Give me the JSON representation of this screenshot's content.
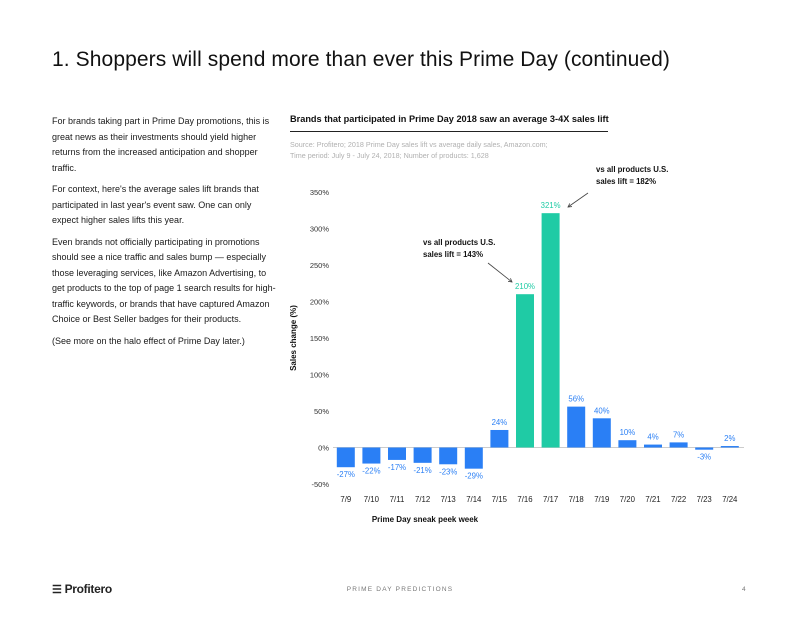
{
  "header": {
    "title": "1. Shoppers will spend more than ever this Prime Day (continued)"
  },
  "body": {
    "paragraphs": [
      "For brands taking part in Prime Day promotions, this is great news as their investments should yield higher returns from the increased anticipation and shopper traffic.",
      "For context, here's the average sales lift brands that participated in last year's event saw. One can only expect higher sales lifts this year.",
      "Even brands not officially participating in promotions should see a nice traffic and sales bump — especially those leveraging services, like Amazon Advertising, to get products to the top of page 1 search results for high-traffic keywords, or brands that have captured Amazon Choice or Best Seller badges for their products.",
      "(See more on the halo effect of Prime Day later.)"
    ]
  },
  "chart_data": {
    "type": "bar",
    "title": "Brands that participated in Prime Day 2018 saw an average 3-4X sales lift",
    "source_line1": "Source: Profitero; 2018 Prime Day sales lift vs average daily sales, Amazon.com;",
    "source_line2": "Time period: July 9 - July 24, 2018; Number of products: 1,628",
    "xlabel": "Prime Day sneak peek week",
    "ylabel": "Sales change (%)",
    "ylim": [
      -50,
      350
    ],
    "yticks": [
      -50,
      0,
      50,
      100,
      150,
      200,
      250,
      300,
      350
    ],
    "ytick_labels": [
      "-50%",
      "0%",
      "50%",
      "100%",
      "150%",
      "200%",
      "250%",
      "300%",
      "350%"
    ],
    "categories": [
      "7/9",
      "7/10",
      "7/11",
      "7/12",
      "7/13",
      "7/14",
      "7/15",
      "7/16",
      "7/17",
      "7/18",
      "7/19",
      "7/20",
      "7/21",
      "7/22",
      "7/23",
      "7/24"
    ],
    "values": [
      -27,
      -22,
      -17,
      -21,
      -23,
      -29,
      24,
      210,
      321,
      56,
      40,
      10,
      4,
      7,
      -3,
      2
    ],
    "value_labels": [
      "-27%",
      "-22%",
      "-17%",
      "-21%",
      "-23%",
      "-29%",
      "24%",
      "210%",
      "321%",
      "56%",
      "40%",
      "10%",
      "4%",
      "7%",
      "-3%",
      "2%"
    ],
    "highlight_categories": [
      "7/16",
      "7/17"
    ],
    "colors": {
      "bar": "#2a7ff5",
      "highlight": "#1fcba5",
      "axis": "#999999"
    },
    "annotations": [
      {
        "line1": "vs all products U.S.",
        "line2": "sales lift = 143%",
        "target": "7/16"
      },
      {
        "line1": "vs all products U.S.",
        "line2": "sales lift = 182%",
        "target": "7/17"
      }
    ],
    "grid": false
  },
  "footer": {
    "logo_text": "Profitero",
    "center_text": "PRIME DAY PREDICTIONS",
    "page_number": "4"
  }
}
